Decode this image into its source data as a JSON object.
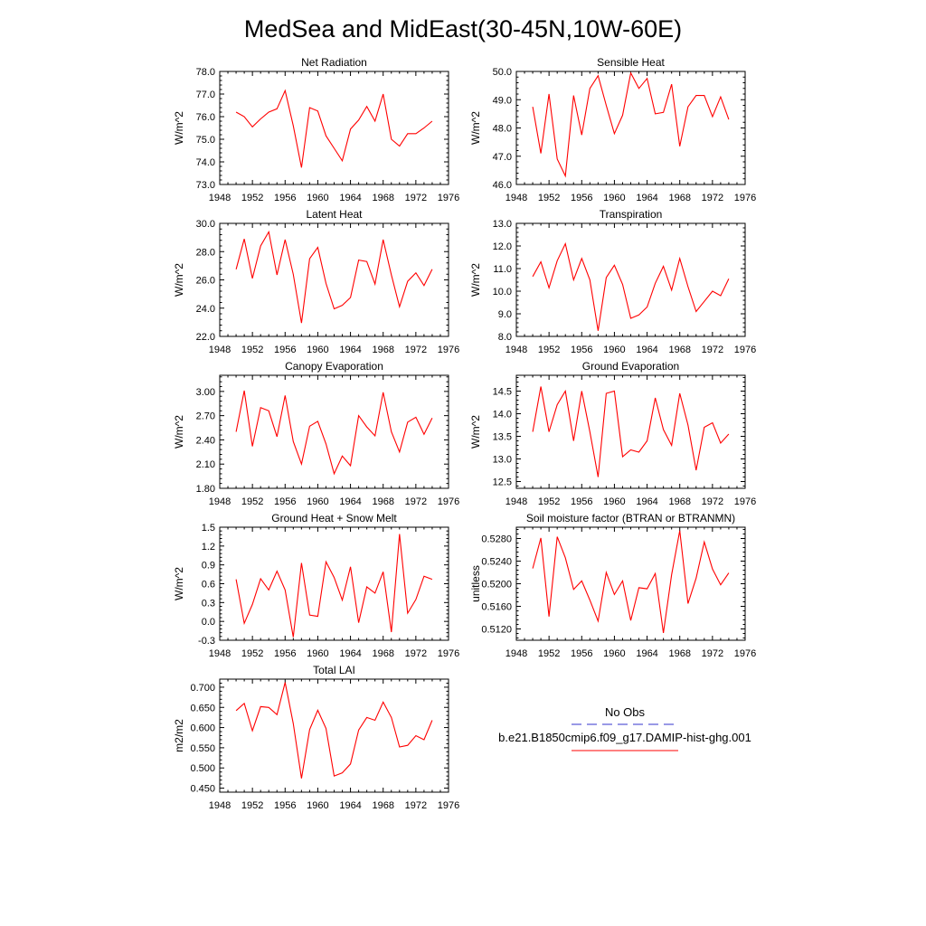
{
  "title": "MedSea and MidEast(30-45N,10W-60E)",
  "legend": {
    "obs_label": "No Obs",
    "obs_color": "#3333cc",
    "model_label": "b.e21.B1850cmip6.f09_g17.DAMIP-hist-ghg.001",
    "model_color": "#ff0000"
  },
  "x_ticks": [
    1948,
    1952,
    1956,
    1960,
    1964,
    1968,
    1972,
    1976
  ],
  "chart_data": [
    {
      "type": "line",
      "title": "Net Radiation",
      "ylabel": "W/m^2",
      "xlim": [
        1948,
        1976
      ],
      "ylim": [
        73.0,
        78.0
      ],
      "y_ticks": [
        "73.0",
        "74.0",
        "75.0",
        "76.0",
        "77.0",
        "78.0"
      ],
      "x": [
        1950,
        1951,
        1952,
        1953,
        1954,
        1955,
        1956,
        1957,
        1958,
        1959,
        1960,
        1961,
        1962,
        1963,
        1964,
        1965,
        1966,
        1967,
        1968,
        1969,
        1970,
        1971,
        1972,
        1973,
        1974
      ],
      "series": [
        {
          "name": "b.e21.B1850cmip6.f09_g17.DAMIP-hist-ghg.001",
          "values": [
            76.2,
            76.0,
            75.55,
            75.9,
            76.2,
            76.35,
            77.15,
            75.6,
            73.75,
            76.4,
            76.25,
            75.15,
            74.6,
            74.05,
            75.45,
            75.85,
            76.45,
            75.8,
            77.0,
            75.0,
            74.7,
            75.25,
            75.25,
            75.5,
            75.8
          ]
        }
      ]
    },
    {
      "type": "line",
      "title": "Sensible Heat",
      "ylabel": "W/m^2",
      "xlim": [
        1948,
        1976
      ],
      "ylim": [
        46.0,
        50.0
      ],
      "y_ticks": [
        "46.0",
        "47.0",
        "48.0",
        "49.0",
        "50.0"
      ],
      "x": [
        1950,
        1951,
        1952,
        1953,
        1954,
        1955,
        1956,
        1957,
        1958,
        1959,
        1960,
        1961,
        1962,
        1963,
        1964,
        1965,
        1966,
        1967,
        1968,
        1969,
        1970,
        1971,
        1972,
        1973,
        1974
      ],
      "series": [
        {
          "name": "b.e21.B1850cmip6.f09_g17.DAMIP-hist-ghg.001",
          "values": [
            48.75,
            47.1,
            49.2,
            46.9,
            46.3,
            49.15,
            47.75,
            49.4,
            49.85,
            48.8,
            47.8,
            48.45,
            49.95,
            49.4,
            49.75,
            48.5,
            48.55,
            49.55,
            47.35,
            48.75,
            49.15,
            49.15,
            48.4,
            49.1,
            48.3
          ]
        }
      ]
    },
    {
      "type": "line",
      "title": "Latent Heat",
      "ylabel": "W/m^2",
      "xlim": [
        1948,
        1976
      ],
      "ylim": [
        22.0,
        30.0
      ],
      "y_ticks": [
        "22.0",
        "24.0",
        "26.0",
        "28.0",
        "30.0"
      ],
      "x": [
        1950,
        1951,
        1952,
        1953,
        1954,
        1955,
        1956,
        1957,
        1958,
        1959,
        1960,
        1961,
        1962,
        1963,
        1964,
        1965,
        1966,
        1967,
        1968,
        1969,
        1970,
        1971,
        1972,
        1973,
        1974
      ],
      "series": [
        {
          "name": "b.e21.B1850cmip6.f09_g17.DAMIP-hist-ghg.001",
          "values": [
            26.75,
            28.9,
            26.1,
            28.4,
            29.4,
            26.35,
            28.85,
            26.4,
            22.95,
            27.5,
            28.3,
            25.75,
            23.95,
            24.2,
            24.75,
            27.4,
            27.3,
            25.7,
            28.85,
            26.35,
            24.1,
            25.9,
            26.5,
            25.6,
            26.75
          ]
        }
      ]
    },
    {
      "type": "line",
      "title": "Transpiration",
      "ylabel": "W/m^2",
      "xlim": [
        1948,
        1976
      ],
      "ylim": [
        8.0,
        13.0
      ],
      "y_ticks": [
        "8.0",
        "9.0",
        "10.0",
        "11.0",
        "12.0",
        "13.0"
      ],
      "x": [
        1950,
        1951,
        1952,
        1953,
        1954,
        1955,
        1956,
        1957,
        1958,
        1959,
        1960,
        1961,
        1962,
        1963,
        1964,
        1965,
        1966,
        1967,
        1968,
        1969,
        1970,
        1971,
        1972,
        1973,
        1974
      ],
      "series": [
        {
          "name": "b.e21.B1850cmip6.f09_g17.DAMIP-hist-ghg.001",
          "values": [
            10.65,
            11.3,
            10.15,
            11.35,
            12.1,
            10.5,
            11.45,
            10.5,
            8.25,
            10.6,
            11.15,
            10.3,
            8.8,
            8.95,
            9.3,
            10.35,
            11.1,
            10.05,
            11.45,
            10.2,
            9.1,
            9.55,
            10.0,
            9.8,
            10.55
          ]
        }
      ]
    },
    {
      "type": "line",
      "title": "Canopy Evaporation",
      "ylabel": "W/m^2",
      "xlim": [
        1948,
        1976
      ],
      "ylim": [
        1.8,
        3.2
      ],
      "y_ticks": [
        "1.80",
        "2.10",
        "2.40",
        "2.70",
        "3.00"
      ],
      "x": [
        1950,
        1951,
        1952,
        1953,
        1954,
        1955,
        1956,
        1957,
        1958,
        1959,
        1960,
        1961,
        1962,
        1963,
        1964,
        1965,
        1966,
        1967,
        1968,
        1969,
        1970,
        1971,
        1972,
        1973,
        1974
      ],
      "series": [
        {
          "name": "b.e21.B1850cmip6.f09_g17.DAMIP-hist-ghg.001",
          "values": [
            2.5,
            3.01,
            2.32,
            2.8,
            2.76,
            2.44,
            2.95,
            2.38,
            2.1,
            2.57,
            2.63,
            2.35,
            1.98,
            2.2,
            2.08,
            2.7,
            2.56,
            2.45,
            2.99,
            2.5,
            2.25,
            2.62,
            2.68,
            2.47,
            2.67
          ]
        }
      ]
    },
    {
      "type": "line",
      "title": "Ground Evaporation",
      "ylabel": "W/m^2",
      "xlim": [
        1948,
        1976
      ],
      "ylim": [
        12.35,
        14.85
      ],
      "y_ticks": [
        "12.5",
        "13.0",
        "13.5",
        "14.0",
        "14.5"
      ],
      "x": [
        1950,
        1951,
        1952,
        1953,
        1954,
        1955,
        1956,
        1957,
        1958,
        1959,
        1960,
        1961,
        1962,
        1963,
        1964,
        1965,
        1966,
        1967,
        1968,
        1969,
        1970,
        1971,
        1972,
        1973,
        1974
      ],
      "series": [
        {
          "name": "b.e21.B1850cmip6.f09_g17.DAMIP-hist-ghg.001",
          "values": [
            13.6,
            14.6,
            13.6,
            14.2,
            14.5,
            13.4,
            14.5,
            13.6,
            12.6,
            14.45,
            14.5,
            13.05,
            13.2,
            13.15,
            13.4,
            14.35,
            13.65,
            13.3,
            14.45,
            13.75,
            12.75,
            13.7,
            13.8,
            13.35,
            13.55
          ]
        }
      ]
    },
    {
      "type": "line",
      "title": "Ground Heat + Snow Melt",
      "ylabel": "W/m^2",
      "xlim": [
        1948,
        1976
      ],
      "ylim": [
        -0.3,
        1.5
      ],
      "y_ticks": [
        "-0.3",
        "0.0",
        "0.3",
        "0.6",
        "0.9",
        "1.2",
        "1.5"
      ],
      "x": [
        1950,
        1951,
        1952,
        1953,
        1954,
        1955,
        1956,
        1957,
        1958,
        1959,
        1960,
        1961,
        1962,
        1963,
        1964,
        1965,
        1966,
        1967,
        1968,
        1969,
        1970,
        1971,
        1972,
        1973,
        1974
      ],
      "series": [
        {
          "name": "b.e21.B1850cmip6.f09_g17.DAMIP-hist-ghg.001",
          "values": [
            0.67,
            -0.03,
            0.27,
            0.68,
            0.5,
            0.8,
            0.5,
            -0.25,
            0.93,
            0.1,
            0.08,
            0.95,
            0.7,
            0.34,
            0.87,
            -0.02,
            0.55,
            0.45,
            0.79,
            -0.17,
            1.39,
            0.13,
            0.35,
            0.72,
            0.67
          ]
        }
      ]
    },
    {
      "type": "line",
      "title": "Soil moisture factor (BTRAN or BTRANMN)",
      "ylabel": "unitless",
      "xlim": [
        1948,
        1976
      ],
      "ylim": [
        0.51,
        0.53
      ],
      "y_ticks": [
        "0.5120",
        "0.5160",
        "0.5200",
        "0.5240",
        "0.5280"
      ],
      "x": [
        1950,
        1951,
        1952,
        1953,
        1954,
        1955,
        1956,
        1957,
        1958,
        1959,
        1960,
        1961,
        1962,
        1963,
        1964,
        1965,
        1966,
        1967,
        1968,
        1969,
        1970,
        1971,
        1972,
        1973,
        1974
      ],
      "series": [
        {
          "name": "b.e21.B1850cmip6.f09_g17.DAMIP-hist-ghg.001",
          "values": [
            0.5227,
            0.5281,
            0.5142,
            0.5283,
            0.5246,
            0.519,
            0.5205,
            0.5171,
            0.5134,
            0.522,
            0.5181,
            0.5205,
            0.5135,
            0.5193,
            0.5191,
            0.5218,
            0.5113,
            0.5216,
            0.5294,
            0.5165,
            0.521,
            0.5274,
            0.5226,
            0.5198,
            0.5219
          ]
        }
      ]
    },
    {
      "type": "line",
      "title": "Total LAI",
      "ylabel": "m2/m2",
      "xlim": [
        1948,
        1976
      ],
      "ylim": [
        0.44,
        0.72
      ],
      "y_ticks": [
        "0.450",
        "0.500",
        "0.550",
        "0.600",
        "0.650",
        "0.700"
      ],
      "x": [
        1950,
        1951,
        1952,
        1953,
        1954,
        1955,
        1956,
        1957,
        1958,
        1959,
        1960,
        1961,
        1962,
        1963,
        1964,
        1965,
        1966,
        1967,
        1968,
        1969,
        1970,
        1971,
        1972,
        1973,
        1974
      ],
      "series": [
        {
          "name": "b.e21.B1850cmip6.f09_g17.DAMIP-hist-ghg.001",
          "values": [
            0.642,
            0.66,
            0.592,
            0.652,
            0.65,
            0.632,
            0.712,
            0.61,
            0.474,
            0.595,
            0.643,
            0.598,
            0.48,
            0.488,
            0.51,
            0.594,
            0.625,
            0.618,
            0.663,
            0.625,
            0.552,
            0.556,
            0.58,
            0.57,
            0.618
          ]
        }
      ]
    }
  ]
}
